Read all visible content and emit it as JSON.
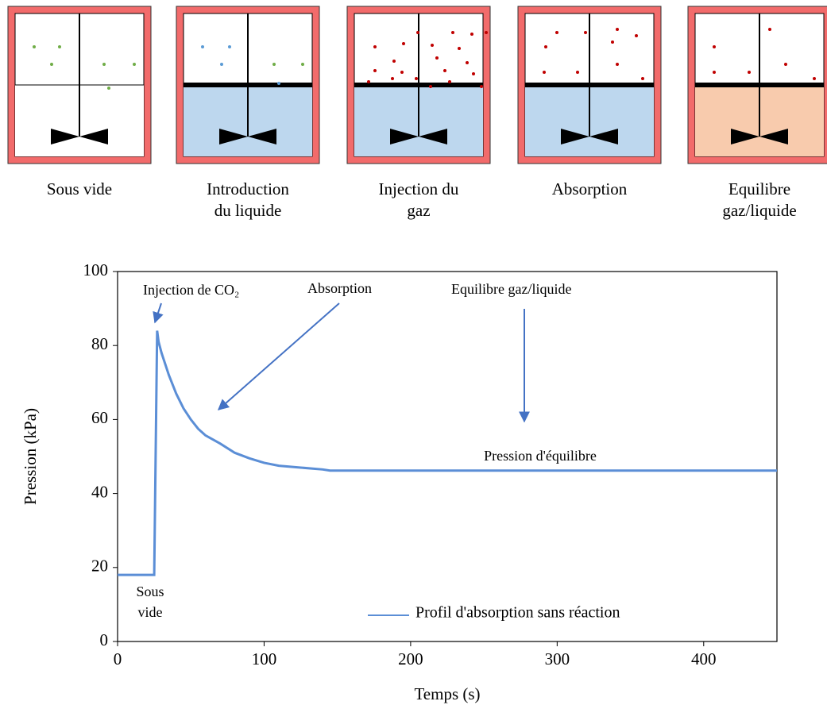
{
  "panels": [
    {
      "lines": [
        "Sous vide"
      ]
    },
    {
      "lines": [
        "Introduction",
        "du liquide"
      ]
    },
    {
      "lines": [
        "Injection du",
        "gaz"
      ]
    },
    {
      "lines": [
        "Absorption"
      ]
    },
    {
      "lines": [
        "Equilibre",
        "gaz/liquide"
      ]
    }
  ],
  "chart_data": {
    "type": "line",
    "xlabel": "Temps (s)",
    "ylabel": "Pression (kPa)",
    "x": [
      0,
      24,
      25,
      27,
      28,
      30,
      35,
      40,
      45,
      50,
      55,
      60,
      70,
      80,
      90,
      100,
      110,
      125,
      140,
      145,
      200,
      300,
      450
    ],
    "series": [
      {
        "name": "Profil d'absorption sans réaction",
        "color": "#5b8ed6",
        "values": [
          18,
          18,
          18,
          84,
          81,
          78,
          72,
          67,
          63,
          60,
          57.5,
          55.7,
          53.5,
          51,
          49.5,
          48.3,
          47.5,
          47,
          46.5,
          46.2,
          46.2,
          46.2,
          46.2
        ]
      }
    ],
    "xlim": [
      0,
      450
    ],
    "xticks": [
      0,
      100,
      200,
      300,
      400
    ],
    "ylim": [
      0,
      100
    ],
    "yticks": [
      0,
      20,
      40,
      60,
      80,
      100
    ],
    "legend": "lower right",
    "annotations": [
      "Injection de CO₂",
      "Absorption",
      "Equilibre gaz/liquide",
      "Pression d'équilibre",
      [
        "Sous",
        "vide"
      ]
    ]
  }
}
